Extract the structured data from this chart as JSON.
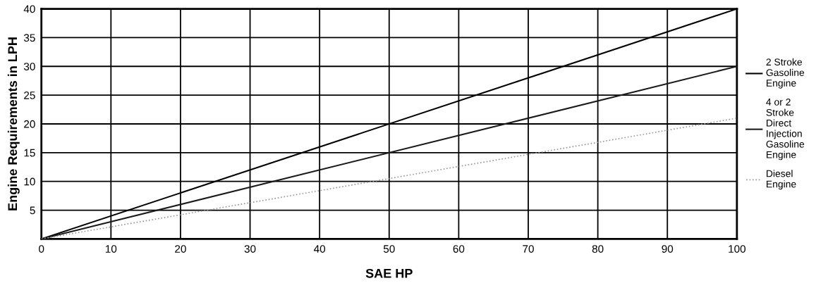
{
  "chart_data": {
    "type": "line",
    "xlabel": "SAE HP",
    "ylabel": "Engine Requirements in LPH",
    "x": [
      0,
      100
    ],
    "series": [
      {
        "name": "2 Stroke\nGasoline\nEngine",
        "color": "#000000",
        "values": [
          0,
          40
        ],
        "line_style": "solid"
      },
      {
        "name": "4 or 2\nStroke\nDirect\nInjection\nGasoline\nEngine",
        "color": "#1a1a1a",
        "values": [
          0,
          30
        ],
        "line_style": "solid"
      },
      {
        "name": "Diesel\nEngine",
        "color": "#999999",
        "values": [
          0,
          21
        ],
        "line_style": "dotted"
      }
    ],
    "xlim": [
      0,
      100
    ],
    "xticks": [
      0,
      10,
      20,
      30,
      40,
      50,
      60,
      70,
      80,
      90,
      100
    ],
    "ylim": [
      0,
      40
    ],
    "yticks": [
      5,
      10,
      15,
      20,
      25,
      30,
      35,
      40
    ],
    "grid": true,
    "legend": "right",
    "marker": "none"
  }
}
